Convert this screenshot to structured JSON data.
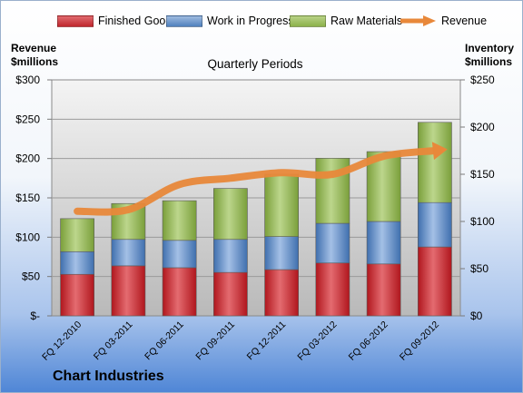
{
  "chart_data": {
    "type": "bar",
    "stacked": true,
    "title": "Quarterly Periods",
    "footer": "Chart Industries",
    "left_axis_label": [
      "Revenue",
      "$millions"
    ],
    "right_axis_label": [
      "Inventory",
      "$millions"
    ],
    "categories": [
      "FQ 12-2010",
      "FQ 03-2011",
      "FQ 06-2011",
      "FQ 09-2011",
      "FQ 12-2011",
      "FQ 03-2012",
      "FQ 06-2012",
      "FQ 09-2012"
    ],
    "series": [
      {
        "name": "Finished Goods",
        "axis": "right",
        "color": "#c0272d",
        "values": [
          44,
          53,
          51,
          46,
          49,
          56,
          55,
          73
        ]
      },
      {
        "name": "Work in Progress",
        "axis": "right",
        "color": "#4f81bd",
        "values": [
          24,
          28,
          29,
          35,
          35,
          42,
          45,
          47
        ]
      },
      {
        "name": "Raw Materials",
        "axis": "right",
        "color": "#8cb14a",
        "values": [
          35,
          38,
          42,
          54,
          66,
          69,
          74,
          85
        ]
      },
      {
        "name": "Revenue",
        "type": "line",
        "axis": "left",
        "color": "#e8883a",
        "values": [
          133,
          135,
          167,
          175,
          182,
          180,
          203,
          210
        ]
      }
    ],
    "left_axis": {
      "ylim": [
        0,
        300
      ],
      "ticks": [
        0,
        50,
        100,
        150,
        200,
        250,
        300
      ],
      "tick_labels": [
        "$-",
        "$50",
        "$100",
        "$150",
        "$200",
        "$250",
        "$300"
      ]
    },
    "right_axis": {
      "ylim": [
        0,
        250
      ],
      "ticks": [
        0,
        50,
        100,
        150,
        200,
        250
      ],
      "tick_labels": [
        "$0",
        "$50",
        "$100",
        "$150",
        "$200",
        "$250"
      ]
    },
    "grid": true,
    "legend_position": "top"
  }
}
